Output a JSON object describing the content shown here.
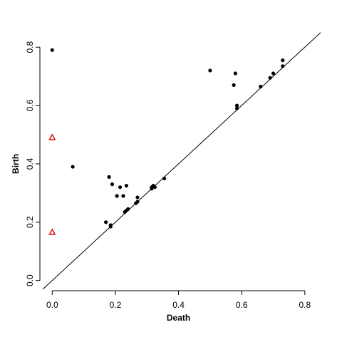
{
  "chart_data": {
    "type": "scatter",
    "title": "",
    "xlabel": "Death",
    "ylabel": "Birth",
    "xlim": [
      -0.03,
      0.85
    ],
    "ylim": [
      -0.03,
      0.82
    ],
    "xticks": [
      "0.0",
      "0.2",
      "0.4",
      "0.6",
      "0.8"
    ],
    "yticks": [
      "0.0",
      "0.2",
      "0.4",
      "0.6",
      "0.8"
    ],
    "grid": false,
    "legend": "none",
    "diagonal": {
      "from": [
        -0.03,
        -0.03
      ],
      "to": [
        0.85,
        0.82
      ],
      "color": "#000000"
    },
    "series": [
      {
        "marker": "dot",
        "color": "#000000",
        "points": [
          [
            0.0,
            0.79
          ],
          [
            0.065,
            0.39
          ],
          [
            0.5,
            0.72
          ],
          [
            0.58,
            0.71
          ],
          [
            0.575,
            0.67
          ],
          [
            0.585,
            0.6
          ],
          [
            0.585,
            0.59
          ],
          [
            0.66,
            0.665
          ],
          [
            0.69,
            0.695
          ],
          [
            0.7,
            0.71
          ],
          [
            0.73,
            0.755
          ],
          [
            0.73,
            0.735
          ],
          [
            0.18,
            0.355
          ],
          [
            0.19,
            0.33
          ],
          [
            0.215,
            0.32
          ],
          [
            0.235,
            0.325
          ],
          [
            0.205,
            0.29
          ],
          [
            0.225,
            0.29
          ],
          [
            0.27,
            0.285
          ],
          [
            0.265,
            0.265
          ],
          [
            0.27,
            0.27
          ],
          [
            0.23,
            0.235
          ],
          [
            0.235,
            0.24
          ],
          [
            0.24,
            0.245
          ],
          [
            0.315,
            0.32
          ],
          [
            0.32,
            0.325
          ],
          [
            0.325,
            0.32
          ],
          [
            0.315,
            0.315
          ],
          [
            0.355,
            0.35
          ],
          [
            0.17,
            0.2
          ],
          [
            0.185,
            0.19
          ],
          [
            0.185,
            0.185
          ]
        ]
      },
      {
        "marker": "triangle",
        "color": "#e0201b",
        "points": [
          [
            0.0,
            0.49
          ],
          [
            0.0,
            0.165
          ]
        ]
      }
    ]
  }
}
